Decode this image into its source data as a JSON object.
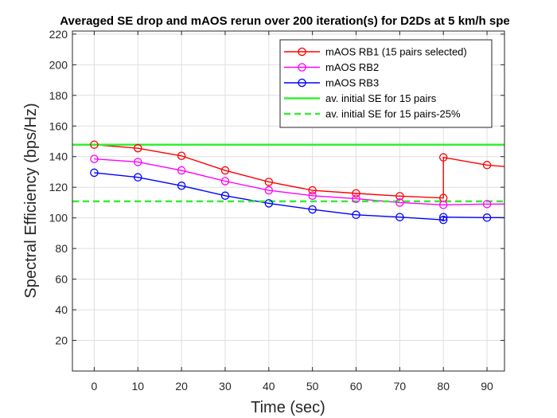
{
  "chart_data": {
    "type": "line",
    "title": "Averaged SE drop and mAOS rerun over 200 iteration(s) for D2Ds at 5 km/h spe",
    "xlabel": "Time (sec)",
    "ylabel": "Spectral Efficiency (bps/Hz)",
    "xlim": [
      -5,
      94
    ],
    "ylim": [
      0,
      222
    ],
    "xticks": [
      0,
      10,
      20,
      30,
      40,
      50,
      60,
      70,
      80,
      90
    ],
    "yticks": [
      20,
      40,
      60,
      80,
      100,
      120,
      140,
      160,
      180,
      200,
      220
    ],
    "grid": true,
    "legend_position": "top-right",
    "series": [
      {
        "name": "mAOS RB1 (15 pairs selected)",
        "color": "#ff0000",
        "style": "solid",
        "marker": "circle",
        "x": [
          0,
          10,
          20,
          30,
          40,
          50,
          60,
          70,
          80,
          80,
          90,
          94
        ],
        "y": [
          147.8,
          145.5,
          140.5,
          131,
          123.5,
          118,
          116,
          114.2,
          113,
          139.5,
          134.5,
          133.5
        ],
        "markers_at": [
          0,
          10,
          20,
          30,
          40,
          50,
          60,
          70,
          80,
          80,
          90
        ]
      },
      {
        "name": "mAOS RB2",
        "color": "#ff00ff",
        "style": "solid",
        "marker": "circle",
        "x": [
          0,
          10,
          20,
          30,
          40,
          50,
          60,
          70,
          80,
          90,
          94
        ],
        "y": [
          138.5,
          136.5,
          131,
          124,
          118,
          114.5,
          112.5,
          110,
          108.5,
          109,
          109
        ],
        "markers_at": [
          0,
          10,
          20,
          30,
          40,
          50,
          60,
          70,
          80,
          90
        ]
      },
      {
        "name": "mAOS RB3",
        "color": "#0000ff",
        "style": "solid",
        "marker": "circle",
        "x": [
          0,
          10,
          20,
          30,
          40,
          50,
          60,
          70,
          80,
          80,
          90,
          94
        ],
        "y": [
          129.5,
          126.5,
          121,
          114.5,
          109.5,
          105.5,
          102,
          100.5,
          98.7,
          100.5,
          100.2,
          100.2
        ],
        "markers_at": [
          0,
          10,
          20,
          30,
          40,
          50,
          60,
          70,
          80,
          80,
          90
        ]
      },
      {
        "name": "av. initial SE for 15 pairs",
        "color": "#33ee33",
        "style": "solid",
        "marker": "none",
        "x": [
          -5,
          94
        ],
        "y": [
          147.8,
          147.8
        ]
      },
      {
        "name": "av. initial SE for 15 pairs-25%",
        "color": "#33ee33",
        "style": "dashed",
        "marker": "none",
        "x": [
          -5,
          94
        ],
        "y": [
          110.8,
          110.8
        ]
      }
    ]
  }
}
